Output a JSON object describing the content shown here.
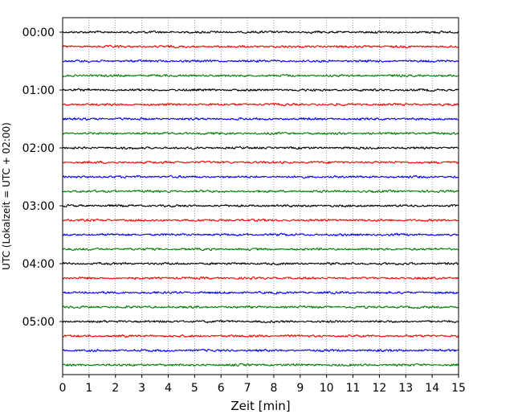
{
  "chart_data": {
    "type": "line",
    "title": "",
    "xlabel": "Zeit  [min]",
    "ylabel": "UTC (Lokalzeit = UTC + 02:00)",
    "xlim": [
      0,
      15
    ],
    "x_ticks": [
      "0",
      "1",
      "2",
      "3",
      "4",
      "5",
      "6",
      "7",
      "8",
      "9",
      "10",
      "11",
      "12",
      "13",
      "14",
      "15"
    ],
    "y_tick_labels": [
      "00:00",
      "01:00",
      "02:00",
      "03:00",
      "04:00",
      "05:00"
    ],
    "trace_interval_minutes": 15,
    "trace_count": 24,
    "trace_start_times": [
      "00:00",
      "00:15",
      "00:30",
      "00:45",
      "01:00",
      "01:15",
      "01:30",
      "01:45",
      "02:00",
      "02:15",
      "02:30",
      "02:45",
      "03:00",
      "03:15",
      "03:30",
      "03:45",
      "04:00",
      "04:15",
      "04:30",
      "04:45",
      "05:00",
      "05:15",
      "05:30",
      "05:45"
    ],
    "trace_colors": [
      "#000000",
      "#ff0000",
      "#0000ff",
      "#008000"
    ],
    "grid_x": true,
    "grid_style": "dotted"
  }
}
